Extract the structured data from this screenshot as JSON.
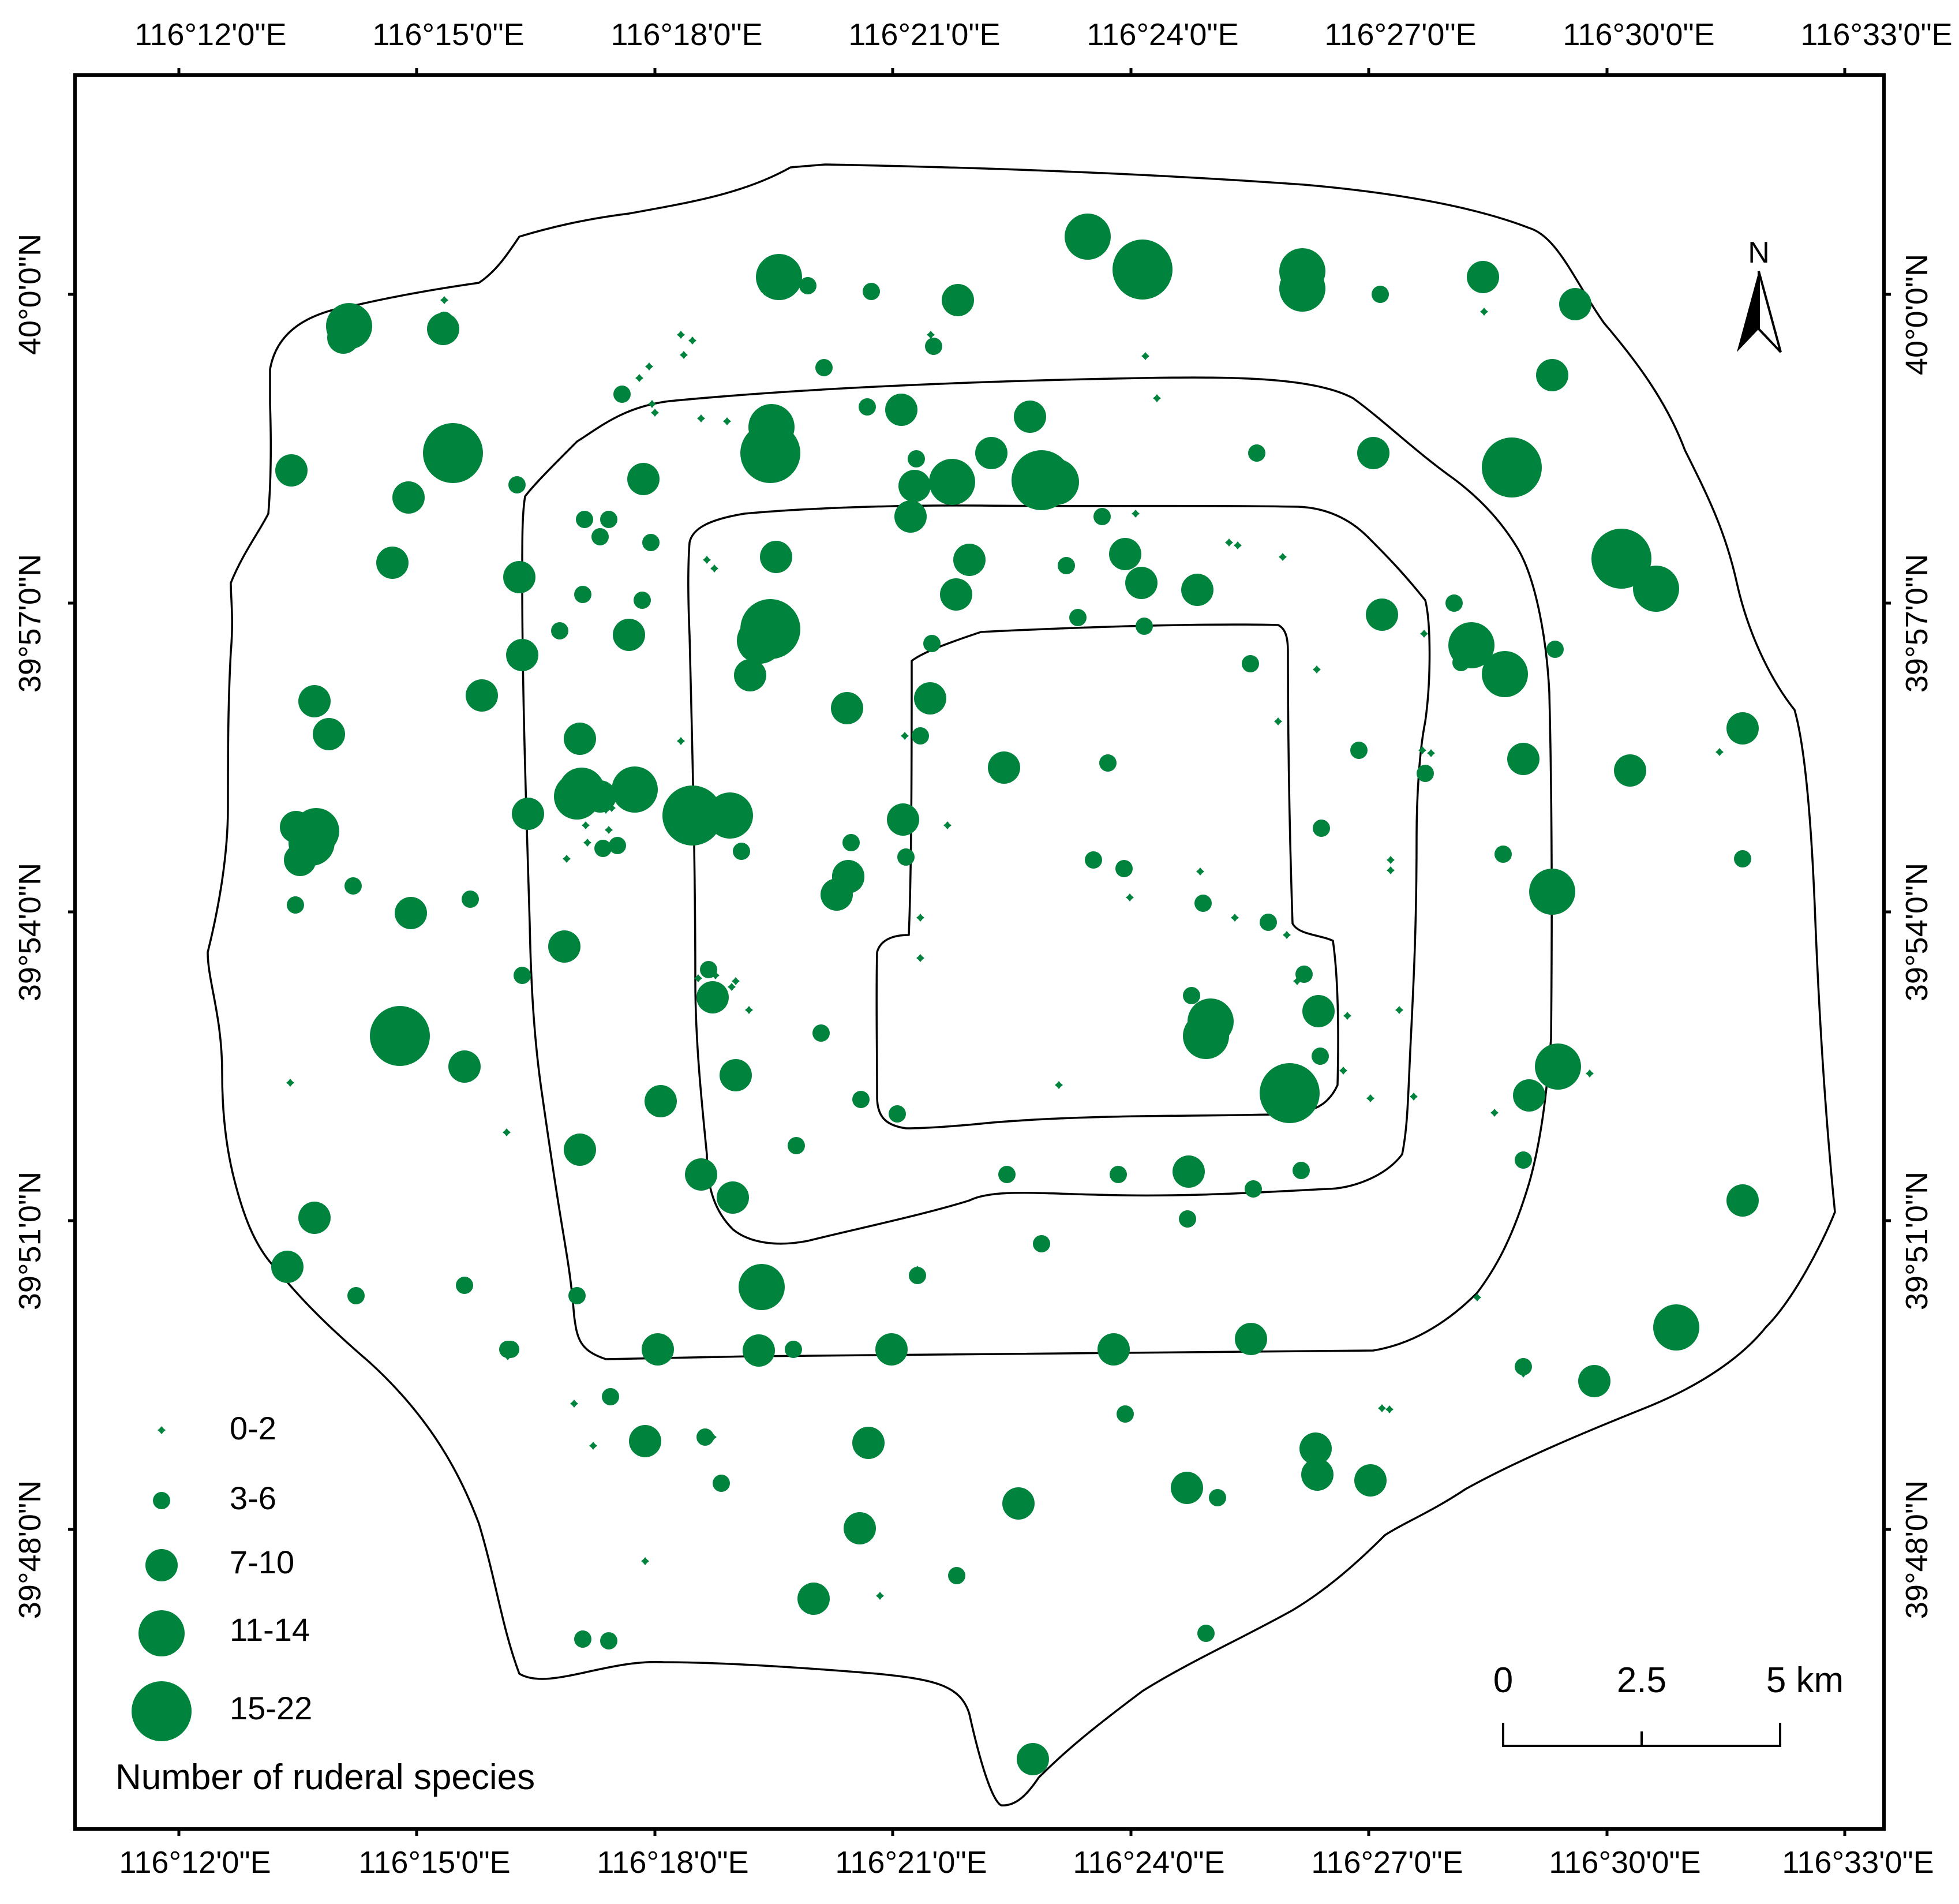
{
  "map": {
    "top_ticks": [
      "116°12'0\"E",
      "116°15'0\"E",
      "116°18'0\"E",
      "116°21'0\"E",
      "116°24'0\"E",
      "116°27'0\"E",
      "116°30'0\"E",
      "116°33'0\"E"
    ],
    "bottom_ticks": [
      "116°12'0\"E",
      "116°15'0\"E",
      "116°18'0\"E",
      "116°21'0\"E",
      "116°24'0\"E",
      "116°27'0\"E",
      "116°30'0\"E",
      "116°33'0\"E"
    ],
    "left_ticks": [
      "40°0'0\"N",
      "39°57'0\"N",
      "39°54'0\"N",
      "39°51'0\"N",
      "39°48'0\"N"
    ],
    "right_ticks": [
      "40°0'0\"N",
      "39°57'0\"N",
      "39°54'0\"N",
      "39°51'0\"N",
      "39°48'0\"N"
    ],
    "north_arrow": {
      "label": "N",
      "icon": "north-arrow-icon"
    },
    "scale_bar": {
      "labels": [
        "0",
        "2.5",
        "5 km"
      ]
    },
    "legend": {
      "title": "Number of ruderal species",
      "classes": [
        "0-2",
        "3-6",
        "7-10",
        "11-14",
        "15-22"
      ]
    },
    "symbol_color": "#00843d",
    "line_color": "#000000",
    "sites_per_class": [
      78,
      74,
      74,
      24,
      10
    ]
  }
}
